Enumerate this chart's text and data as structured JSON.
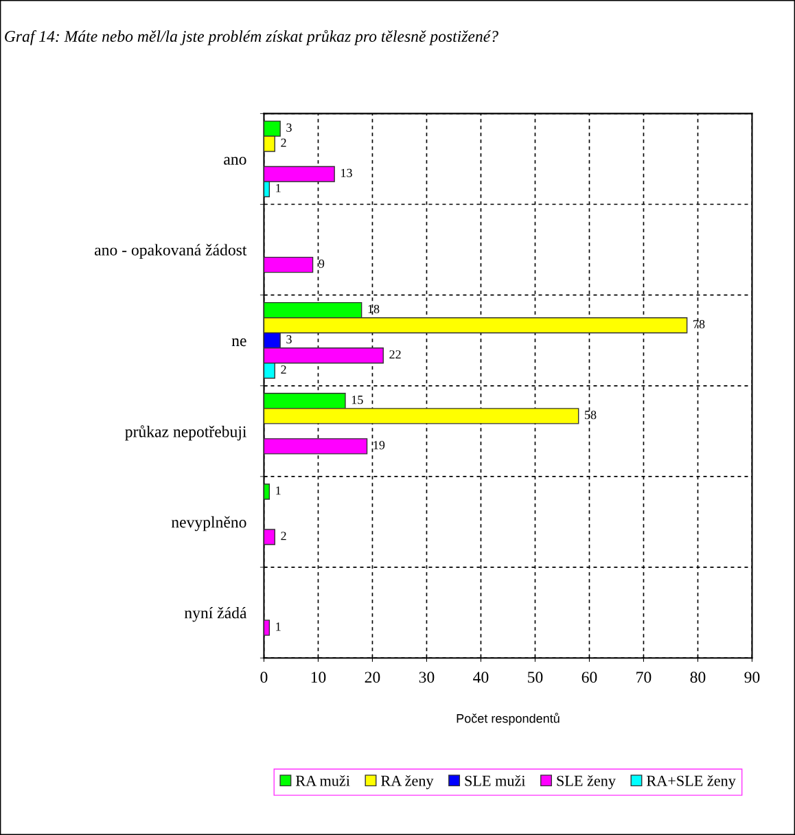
{
  "chart_data": {
    "type": "bar",
    "orientation": "horizontal",
    "title": "Graf 14: Máte nebo měl/la jste problém získat průkaz pro tělesně postižené?",
    "categories": [
      "ano",
      "ano - opakovaná žádost",
      "ne",
      "průkaz nepotřebuji",
      "nevyplněno",
      "nyní žádá"
    ],
    "series": [
      {
        "name": "RA muži",
        "color": "#00ff00",
        "values": [
          3,
          null,
          18,
          15,
          1,
          null
        ]
      },
      {
        "name": "RA ženy",
        "color": "#ffff00",
        "values": [
          2,
          null,
          78,
          58,
          null,
          null
        ]
      },
      {
        "name": "SLE muži",
        "color": "#0000ff",
        "values": [
          null,
          null,
          3,
          null,
          null,
          null
        ]
      },
      {
        "name": "SLE ženy",
        "color": "#ff00ff",
        "values": [
          13,
          9,
          22,
          19,
          2,
          1
        ]
      },
      {
        "name": "RA+SLE ženy",
        "color": "#00ffff",
        "values": [
          1,
          null,
          2,
          null,
          null,
          null
        ]
      }
    ],
    "xlabel": "Počet respondentů",
    "xlim": [
      0,
      90
    ],
    "xticks": [
      0,
      10,
      20,
      30,
      40,
      50,
      60,
      70,
      80,
      90
    ],
    "grid": true,
    "data_labels": true,
    "legend": "bottom"
  }
}
